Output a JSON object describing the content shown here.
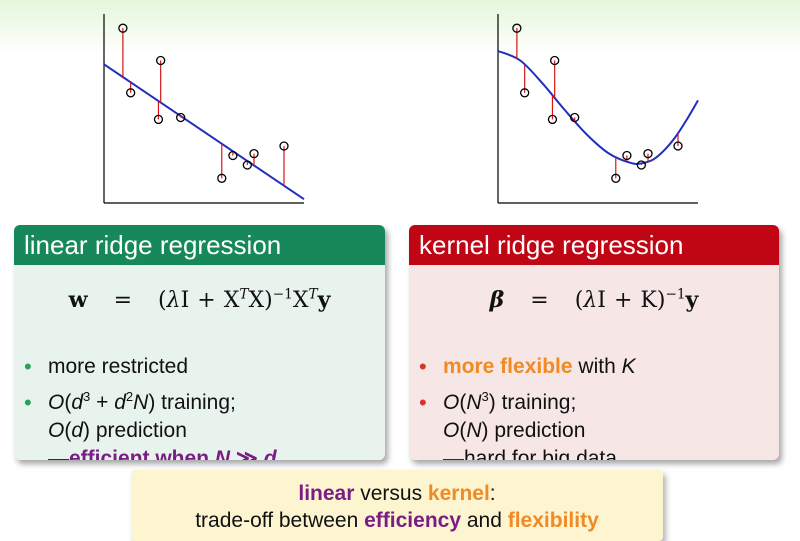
{
  "linear_box": {
    "title": "linear ridge regression",
    "bullet1": "more restricted",
    "b2_training": ") training;",
    "b2_prediction": ") prediction",
    "b2_dash": "—",
    "b2_efficient": "efficient when",
    "math_N": "N",
    "math_d": "d",
    "math_gg": " ≫ "
  },
  "kernel_box": {
    "title": "kernel ridge regression",
    "b1_flexible": "more flexible",
    "b1_with": " with ",
    "math_K": "K",
    "b2_training": ") training;",
    "b2_prediction": ") prediction",
    "b2_hard": "—hard for big data"
  },
  "summary": {
    "linear": "linear",
    "versus": " versus ",
    "kernel": "kernel",
    "colon": ":",
    "tradeoff": "trade-off between ",
    "efficiency": "efficiency",
    "and": " and ",
    "flexibility": "flexibility"
  },
  "colors": {
    "linear_header": "#17885a",
    "kernel_header": "#c00515",
    "orange_accent": "#f08a24",
    "purple_accent": "#7a1e86",
    "fit_line": "#1f2fc0",
    "residual": "#d41616"
  },
  "linear_plot": {
    "points": [
      [
        1.7,
        9.2
      ],
      [
        2.4,
        5.8
      ],
      [
        5.1,
        7.5
      ],
      [
        4.9,
        4.4
      ],
      [
        6.9,
        4.5
      ],
      [
        10.6,
        1.3
      ],
      [
        11.6,
        2.5
      ],
      [
        12.9,
        2.0
      ],
      [
        13.5,
        2.6
      ],
      [
        16.2,
        3.0
      ]
    ],
    "fit_line": [
      [
        0,
        7.3
      ],
      [
        18,
        0.2
      ]
    ]
  },
  "kernel_plot": {
    "points": [
      [
        1.7,
        9.2
      ],
      [
        2.4,
        5.8
      ],
      [
        5.1,
        7.5
      ],
      [
        4.9,
        4.4
      ],
      [
        6.9,
        4.5
      ],
      [
        10.6,
        1.3
      ],
      [
        11.6,
        2.5
      ],
      [
        12.9,
        2.0
      ],
      [
        13.5,
        2.6
      ],
      [
        16.2,
        3.0
      ]
    ],
    "fit_curve": [
      [
        0,
        8.0
      ],
      [
        2,
        7.5
      ],
      [
        4,
        6.3
      ],
      [
        6,
        4.9
      ],
      [
        8,
        3.6
      ],
      [
        10,
        2.6
      ],
      [
        12,
        2.1
      ],
      [
        13,
        2.1
      ],
      [
        14,
        2.3
      ],
      [
        15,
        2.8
      ],
      [
        16,
        3.5
      ],
      [
        17,
        4.4
      ],
      [
        18,
        5.4
      ]
    ]
  }
}
